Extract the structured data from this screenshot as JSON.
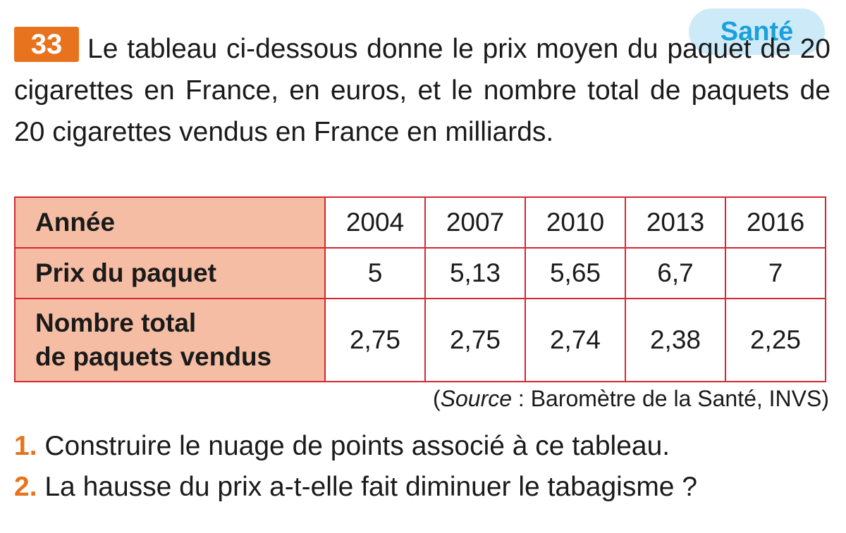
{
  "exercise": {
    "number": "33",
    "tag": "Santé",
    "intro": "Le tableau ci-dessous donne le prix moyen du paquet de 20 cigarettes en France, en euros, et le nombre total de paquets de 20 cigarettes vendus en France en milliards."
  },
  "table": {
    "header_label": "Année",
    "years": [
      "2004",
      "2007",
      "2010",
      "2013",
      "2016"
    ],
    "rows": [
      {
        "label": "Prix du paquet",
        "values": [
          "5",
          "5,13",
          "5,65",
          "6,7",
          "7"
        ]
      },
      {
        "label_line1": "Nombre total",
        "label_line2": "de paquets vendus",
        "values": [
          "2,75",
          "2,75",
          "2,74",
          "2,38",
          "2,25"
        ]
      }
    ]
  },
  "source": {
    "open": "(",
    "word": "Source",
    "rest": " : Baromètre de la Santé, INVS)"
  },
  "questions": [
    {
      "num": "1.",
      "text": " Construire le nuage de points associé à ce tableau."
    },
    {
      "num": "2.",
      "text": " La hausse du prix a-t-elle fait diminuer le tabagisme ?"
    }
  ],
  "colors": {
    "accent_orange": "#e8731e",
    "table_border": "#d62631",
    "header_fill": "#f5bda3",
    "tag_bg": "#cdeaf8",
    "tag_text": "#1aa0dc"
  }
}
